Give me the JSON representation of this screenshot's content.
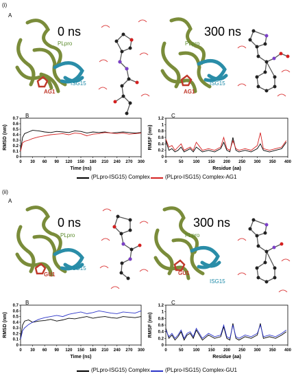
{
  "panel_i": {
    "roman": "(i)",
    "label_A": "A",
    "t0": "0 ns",
    "t300": "300 ns",
    "plpro": "PLpro",
    "isg15": "ISG15",
    "ligand": "AG1",
    "label_B": "B",
    "label_C": "C",
    "legend_black": "(PLpro-ISG15) Complex",
    "legend_color": "(PLpro-ISG15) Complex-AG1"
  },
  "panel_ii": {
    "roman": "(ii)",
    "label_A": "A",
    "t0": "0 ns",
    "t300": "300 ns",
    "plpro": "PLpro",
    "isg15": "ISG15",
    "ligand": "GU1",
    "label_B": "B",
    "label_C": "C",
    "legend_black": "(PLpro-ISG15) Complex",
    "legend_color": "(PLpro-ISG15) Complex-GU1"
  },
  "colors": {
    "protein": "#7a8c3a",
    "isg15": "#2a8da8",
    "ligand_i": "#c0392b",
    "ligand_ii": "#c0392b",
    "series_red": "#d42020",
    "series_blue": "#2a33c8",
    "black": "#000000"
  },
  "chart_data": [
    {
      "id": "i-B",
      "type": "line",
      "xlabel": "Time (ns)",
      "ylabel": "RMSD (nm)",
      "xlim": [
        0,
        300
      ],
      "ylim": [
        0,
        0.7
      ],
      "xticks": [
        0,
        30,
        60,
        90,
        120,
        150,
        180,
        210,
        240,
        270,
        300
      ],
      "yticks": [
        0,
        0.1,
        0.2,
        0.3,
        0.4,
        0.5,
        0.6,
        0.7
      ],
      "series": [
        {
          "color": "#000000",
          "x": [
            0,
            5,
            10,
            20,
            30,
            45,
            60,
            75,
            90,
            105,
            120,
            135,
            150,
            165,
            180,
            195,
            210,
            225,
            240,
            255,
            270,
            285,
            300
          ],
          "y": [
            0.1,
            0.35,
            0.42,
            0.45,
            0.48,
            0.47,
            0.45,
            0.44,
            0.46,
            0.45,
            0.44,
            0.47,
            0.46,
            0.43,
            0.45,
            0.44,
            0.45,
            0.43,
            0.44,
            0.45,
            0.44,
            0.43,
            0.44
          ]
        },
        {
          "color": "#d42020",
          "x": [
            0,
            5,
            10,
            20,
            30,
            45,
            60,
            75,
            90,
            105,
            120,
            135,
            150,
            165,
            180,
            195,
            210,
            225,
            240,
            255,
            270,
            285,
            300
          ],
          "y": [
            0.1,
            0.25,
            0.28,
            0.3,
            0.33,
            0.36,
            0.38,
            0.4,
            0.41,
            0.42,
            0.4,
            0.43,
            0.42,
            0.38,
            0.41,
            0.42,
            0.44,
            0.43,
            0.42,
            0.43,
            0.41,
            0.42,
            0.43
          ]
        }
      ]
    },
    {
      "id": "i-C",
      "type": "line",
      "xlabel": "Residue (aa)",
      "ylabel": "RMSF (nm)",
      "xlim": [
        0,
        400
      ],
      "ylim": [
        0,
        1.2
      ],
      "xticks": [
        0,
        50,
        100,
        150,
        200,
        250,
        300,
        350,
        400
      ],
      "yticks": [
        0,
        0.2,
        0.4,
        0.6,
        0.8,
        1,
        1.2
      ],
      "series": [
        {
          "color": "#000000",
          "x": [
            0,
            10,
            20,
            30,
            40,
            50,
            60,
            70,
            80,
            90,
            100,
            120,
            140,
            160,
            180,
            190,
            200,
            210,
            220,
            230,
            240,
            260,
            280,
            300,
            310,
            320,
            340,
            360,
            380,
            395
          ],
          "y": [
            0.5,
            0.2,
            0.25,
            0.15,
            0.2,
            0.3,
            0.15,
            0.2,
            0.25,
            0.15,
            0.3,
            0.15,
            0.2,
            0.15,
            0.25,
            0.45,
            0.2,
            0.15,
            0.6,
            0.2,
            0.15,
            0.2,
            0.15,
            0.25,
            0.4,
            0.2,
            0.15,
            0.2,
            0.25,
            0.45
          ]
        },
        {
          "color": "#d42020",
          "x": [
            0,
            10,
            20,
            30,
            40,
            50,
            60,
            70,
            80,
            90,
            100,
            120,
            140,
            160,
            180,
            190,
            200,
            210,
            220,
            230,
            240,
            260,
            280,
            300,
            310,
            320,
            340,
            360,
            380,
            395
          ],
          "y": [
            0.55,
            0.3,
            0.35,
            0.2,
            0.3,
            0.4,
            0.2,
            0.25,
            0.3,
            0.2,
            0.45,
            0.2,
            0.25,
            0.2,
            0.3,
            0.6,
            0.25,
            0.2,
            0.5,
            0.25,
            0.2,
            0.25,
            0.2,
            0.35,
            0.75,
            0.25,
            0.2,
            0.25,
            0.3,
            0.5
          ]
        }
      ]
    },
    {
      "id": "ii-B",
      "type": "line",
      "xlabel": "Time (ns)",
      "ylabel": "RMSD (nm)",
      "xlim": [
        0,
        300
      ],
      "ylim": [
        0,
        0.7
      ],
      "xticks": [
        0,
        30,
        60,
        90,
        120,
        150,
        180,
        210,
        240,
        270,
        300
      ],
      "yticks": [
        0,
        0.1,
        0.2,
        0.3,
        0.4,
        0.5,
        0.6,
        0.7
      ],
      "series": [
        {
          "color": "#000000",
          "x": [
            0,
            5,
            10,
            20,
            30,
            45,
            60,
            75,
            90,
            105,
            120,
            135,
            150,
            165,
            180,
            195,
            210,
            225,
            240,
            255,
            270,
            285,
            300
          ],
          "y": [
            0.1,
            0.35,
            0.42,
            0.44,
            0.4,
            0.42,
            0.43,
            0.45,
            0.42,
            0.44,
            0.47,
            0.46,
            0.48,
            0.5,
            0.47,
            0.49,
            0.5,
            0.48,
            0.47,
            0.5,
            0.49,
            0.48,
            0.5
          ]
        },
        {
          "color": "#2a33c8",
          "x": [
            0,
            5,
            10,
            20,
            30,
            45,
            60,
            75,
            90,
            105,
            120,
            135,
            150,
            165,
            180,
            195,
            210,
            225,
            240,
            255,
            270,
            285,
            300
          ],
          "y": [
            0.1,
            0.25,
            0.3,
            0.36,
            0.4,
            0.45,
            0.48,
            0.5,
            0.52,
            0.5,
            0.54,
            0.56,
            0.58,
            0.55,
            0.57,
            0.6,
            0.58,
            0.56,
            0.55,
            0.58,
            0.57,
            0.56,
            0.6
          ]
        }
      ]
    },
    {
      "id": "ii-C",
      "type": "line",
      "xlabel": "Residue (aa)",
      "ylabel": "RMSF (nm)",
      "xlim": [
        0,
        400
      ],
      "ylim": [
        0,
        1.2
      ],
      "xticks": [
        0,
        50,
        100,
        150,
        200,
        250,
        300,
        350,
        400
      ],
      "yticks": [
        0,
        0.2,
        0.4,
        0.6,
        0.8,
        1,
        1.2
      ],
      "series": [
        {
          "color": "#000000",
          "x": [
            0,
            10,
            20,
            30,
            40,
            50,
            60,
            70,
            80,
            90,
            100,
            120,
            140,
            160,
            180,
            190,
            200,
            210,
            220,
            230,
            240,
            260,
            280,
            300,
            310,
            320,
            340,
            360,
            380,
            395
          ],
          "y": [
            0.5,
            0.2,
            0.3,
            0.15,
            0.25,
            0.4,
            0.15,
            0.3,
            0.35,
            0.2,
            0.45,
            0.15,
            0.3,
            0.2,
            0.25,
            0.55,
            0.2,
            0.15,
            0.65,
            0.2,
            0.15,
            0.25,
            0.2,
            0.3,
            0.65,
            0.2,
            0.25,
            0.2,
            0.3,
            0.4
          ]
        },
        {
          "color": "#2a33c8",
          "x": [
            0,
            10,
            20,
            30,
            40,
            50,
            60,
            70,
            80,
            90,
            100,
            120,
            140,
            160,
            180,
            190,
            200,
            210,
            220,
            230,
            240,
            260,
            280,
            300,
            310,
            320,
            340,
            360,
            380,
            395
          ],
          "y": [
            0.45,
            0.25,
            0.35,
            0.2,
            0.3,
            0.45,
            0.2,
            0.35,
            0.4,
            0.25,
            0.5,
            0.2,
            0.35,
            0.25,
            0.3,
            0.6,
            0.25,
            0.2,
            0.6,
            0.25,
            0.2,
            0.3,
            0.25,
            0.35,
            0.6,
            0.25,
            0.3,
            0.25,
            0.35,
            0.45
          ]
        }
      ]
    }
  ]
}
